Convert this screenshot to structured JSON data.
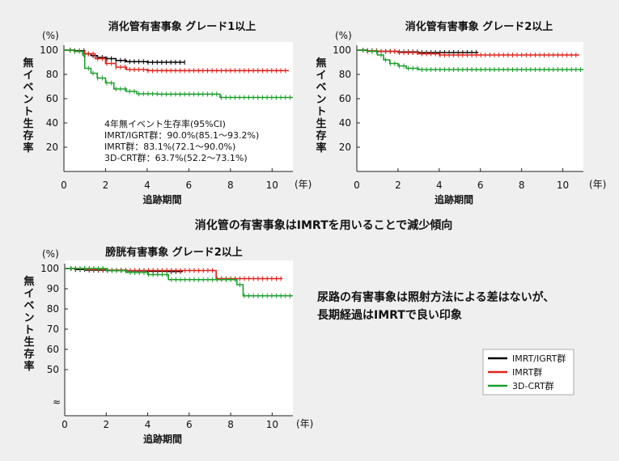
{
  "captions": {
    "middle": "消化管の有害事象はIMRTを用いることで減少傾向",
    "right_line1": "尿路の有害事象は照射方法による差はないが、",
    "right_line2": "長期経過はIMRTで良い印象"
  },
  "colors": {
    "imrt_igrt": "#000000",
    "imrt": "#e0231c",
    "crt3d": "#1aa02c"
  },
  "legend": [
    "IMRT/IGRT群",
    "IMRT群",
    "3D-CRT群"
  ],
  "chart_data": [
    {
      "type": "line",
      "title": "消化管有害事象 グレード1以上",
      "ylabel": "無イベント生存率",
      "yunit": "(%)",
      "xlabel": "追跡期間",
      "xunit": "(年)",
      "xlim": [
        0,
        11
      ],
      "ylim": [
        0,
        100
      ],
      "yticks": [
        "20",
        "40",
        "60",
        "80",
        "100"
      ],
      "xticks": [
        "0",
        "2",
        "4",
        "6",
        "8",
        "10"
      ],
      "series": [
        {
          "name": "IMRT/IGRT群",
          "x": [
            0,
            0.5,
            1.0,
            1.3,
            1.6,
            2.0,
            2.5,
            3.0,
            4.0,
            5.0,
            5.8
          ],
          "y": [
            100,
            99.5,
            97,
            95.5,
            94,
            93,
            91.5,
            90.5,
            90,
            90,
            90
          ]
        },
        {
          "name": "IMRT群",
          "x": [
            0,
            0.5,
            1.0,
            1.5,
            2.0,
            2.5,
            3.0,
            4.0,
            6.0,
            8.0,
            10.0,
            10.8
          ],
          "y": [
            100,
            99,
            97,
            93,
            89,
            86,
            84,
            83.1,
            83.1,
            83.1,
            83.1,
            83.1
          ]
        },
        {
          "name": "3D-CRT群",
          "x": [
            0,
            0.5,
            0.9,
            1.0,
            1.3,
            1.6,
            2.0,
            2.4,
            3.0,
            3.5,
            4.5,
            5.0,
            6.0,
            7.0,
            7.5,
            9.0,
            11.0
          ],
          "y": [
            100,
            99,
            96,
            85,
            81,
            77,
            73,
            68,
            66,
            64,
            63.7,
            63.7,
            63.7,
            63.7,
            61,
            61,
            61
          ]
        }
      ],
      "annotation": [
        "4年無イベント生存率(95%CI)",
        "IMRT/IGRT群：90.0%(85.1～93.2%)",
        "IMRT群：83.1%(72.1～90.0%)",
        "3D-CRT群：63.7%(52.2～73.1%)"
      ]
    },
    {
      "type": "line",
      "title": "消化管有害事象 グレード2以上",
      "ylabel": "無イベント生存率",
      "yunit": "(%)",
      "xlabel": "追跡期間",
      "xunit": "(年)",
      "xlim": [
        0,
        11
      ],
      "ylim": [
        0,
        100
      ],
      "yticks": [
        "20",
        "40",
        "60",
        "80",
        "100"
      ],
      "xticks": [
        "0",
        "2",
        "4",
        "6",
        "8",
        "10"
      ],
      "series": [
        {
          "name": "IMRT/IGRT群",
          "x": [
            0,
            0.5,
            1.0,
            2.0,
            3.0,
            4.0,
            5.0,
            5.9
          ],
          "y": [
            100,
            99.5,
            99,
            98.5,
            98,
            98,
            98,
            98
          ]
        },
        {
          "name": "IMRT群",
          "x": [
            0,
            0.5,
            1.0,
            2.0,
            3.0,
            4.0,
            6.0,
            8.0,
            10.0,
            10.8
          ],
          "y": [
            100,
            99.5,
            99,
            98,
            97,
            96,
            96,
            96,
            96,
            96
          ]
        },
        {
          "name": "3D-CRT群",
          "x": [
            0,
            0.5,
            1.0,
            1.3,
            1.6,
            2.0,
            2.4,
            3.0,
            5.0,
            7.0,
            9.0,
            11.0
          ],
          "y": [
            100,
            99,
            96,
            92,
            89,
            87,
            85,
            84,
            84,
            84,
            84,
            84
          ]
        }
      ]
    },
    {
      "type": "line",
      "title": "膀胱有害事象 グレード2以上",
      "ylabel": "無イベント生存率",
      "yunit": "(%)",
      "xlabel": "追跡期間",
      "xunit": "(年)",
      "xlim": [
        0,
        11
      ],
      "ylim": [
        40,
        100
      ],
      "ybreak": true,
      "yticks": [
        "50",
        "60",
        "70",
        "80",
        "90",
        "100"
      ],
      "xticks": [
        "0",
        "2",
        "4",
        "6",
        "8",
        "10"
      ],
      "series": [
        {
          "name": "IMRT/IGRT群",
          "x": [
            0,
            0.5,
            1.0,
            2.0,
            3.0,
            4.0,
            5.0,
            5.7
          ],
          "y": [
            100,
            99.5,
            99.2,
            99,
            98.8,
            98.6,
            98.5,
            98.5
          ]
        },
        {
          "name": "IMRT群",
          "x": [
            0,
            1.0,
            2.0,
            3.0,
            4.0,
            5.0,
            6.0,
            7.2,
            7.3,
            8.0,
            10.0,
            10.5
          ],
          "y": [
            100,
            99.5,
            99.2,
            99,
            99,
            99,
            99,
            99,
            95,
            95,
            95,
            95
          ]
        },
        {
          "name": "3D-CRT群",
          "x": [
            0,
            1.0,
            2.0,
            3.0,
            4.0,
            5.0,
            6.0,
            7.0,
            8.0,
            8.3,
            8.6,
            9.0,
            10.0,
            11.0
          ],
          "y": [
            100,
            100,
            99,
            98,
            97,
            94.5,
            94.5,
            94.5,
            94.5,
            92,
            86.5,
            86.5,
            86.5,
            86.5
          ]
        }
      ]
    }
  ]
}
